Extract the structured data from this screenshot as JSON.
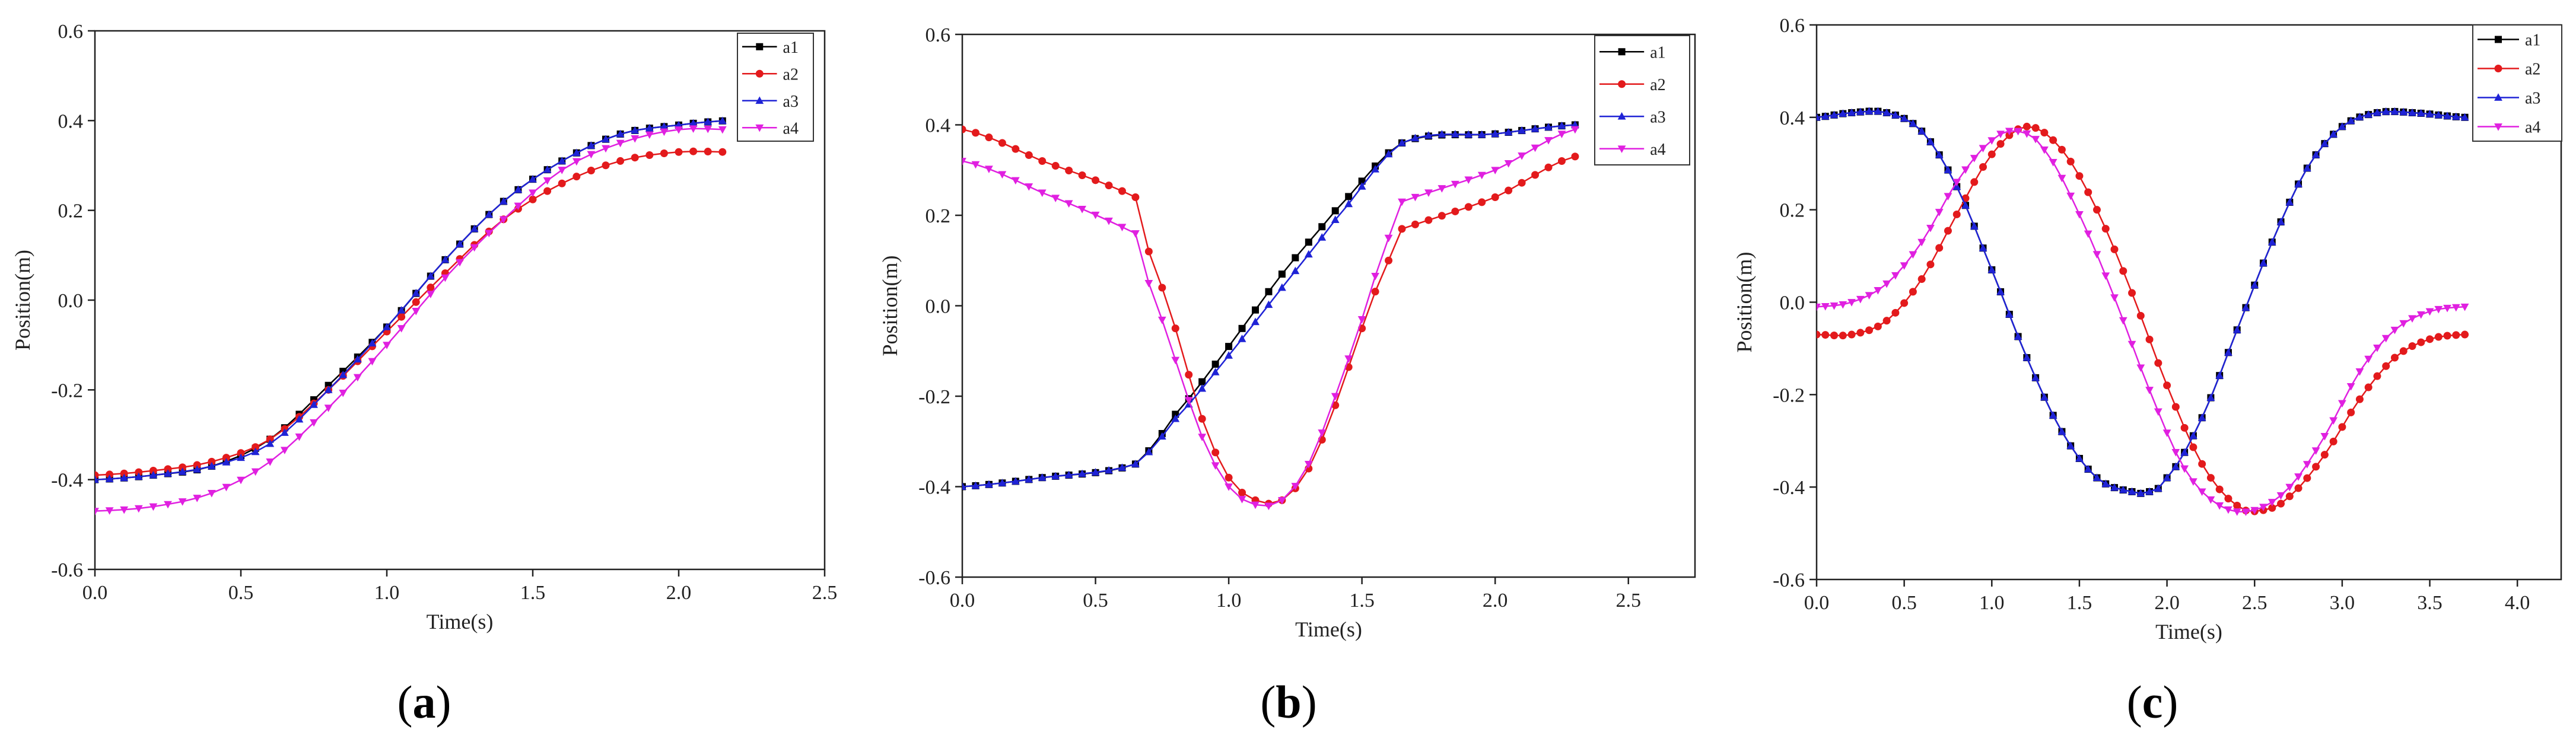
{
  "chart_data": [
    {
      "type": "line",
      "panel_label": "a",
      "xlabel": "Time(s)",
      "ylabel": "Position(m)",
      "xlim": [
        0,
        2.5
      ],
      "ylim": [
        -0.6,
        0.6
      ],
      "xticks": [
        0.0,
        0.5,
        1.0,
        1.5,
        2.0,
        2.5
      ],
      "yticks": [
        -0.6,
        -0.4,
        -0.2,
        0.0,
        0.2,
        0.4,
        0.6
      ],
      "xtick_labels": [
        "0.0",
        "0.5",
        "1.0",
        "1.5",
        "2.0",
        "2.5"
      ],
      "ytick_labels": [
        "-0.6",
        "-0.4",
        "-0.2",
        "0.0",
        "0.2",
        "0.4",
        "0.6"
      ],
      "legend": [
        "a1",
        "a2",
        "a3",
        "a4"
      ],
      "series": [
        {
          "name": "a1",
          "color": "#000000",
          "marker": "square",
          "x": [
            0,
            0.2,
            0.4,
            0.6,
            0.8,
            1.0,
            1.2,
            1.4,
            1.6,
            1.8,
            2.0,
            2.17
          ],
          "y": [
            -0.4,
            -0.39,
            -0.37,
            -0.31,
            -0.19,
            -0.06,
            0.09,
            0.22,
            0.31,
            0.37,
            0.39,
            0.4
          ]
        },
        {
          "name": "a2",
          "color": "#e31a1c",
          "marker": "circle",
          "x": [
            0,
            0.2,
            0.4,
            0.6,
            0.8,
            1.0,
            1.2,
            1.4,
            1.6,
            1.8,
            2.0,
            2.17
          ],
          "y": [
            -0.39,
            -0.38,
            -0.36,
            -0.31,
            -0.2,
            -0.07,
            0.06,
            0.18,
            0.26,
            0.31,
            0.33,
            0.33
          ]
        },
        {
          "name": "a3",
          "color": "#1f23d6",
          "marker": "triangle-up",
          "x": [
            0,
            0.2,
            0.4,
            0.6,
            0.8,
            1.0,
            1.2,
            1.4,
            1.6,
            1.8,
            2.0,
            2.17
          ],
          "y": [
            -0.4,
            -0.39,
            -0.37,
            -0.32,
            -0.2,
            -0.06,
            0.09,
            0.22,
            0.31,
            0.37,
            0.39,
            0.4
          ]
        },
        {
          "name": "a4",
          "color": "#e020e0",
          "marker": "triangle-down",
          "x": [
            0,
            0.2,
            0.4,
            0.6,
            0.8,
            1.0,
            1.2,
            1.4,
            1.6,
            1.8,
            2.0,
            2.17
          ],
          "y": [
            -0.47,
            -0.46,
            -0.43,
            -0.36,
            -0.24,
            -0.1,
            0.05,
            0.18,
            0.29,
            0.35,
            0.38,
            0.38
          ]
        }
      ]
    },
    {
      "type": "line",
      "panel_label": "b",
      "xlabel": "Time(s)",
      "ylabel": "Position(m)",
      "xlim": [
        0,
        2.75
      ],
      "ylim": [
        -0.6,
        0.6
      ],
      "xticks": [
        0.0,
        0.5,
        1.0,
        1.5,
        2.0,
        2.5
      ],
      "yticks": [
        -0.6,
        -0.4,
        -0.2,
        0.0,
        0.2,
        0.4,
        0.6
      ],
      "xtick_labels": [
        "0.0",
        "0.5",
        "1.0",
        "1.5",
        "2.0",
        "2.5"
      ],
      "ytick_labels": [
        "-0.6",
        "-0.4",
        "-0.2",
        "0.0",
        "0.2",
        "0.4",
        "0.6"
      ],
      "legend": [
        "a1",
        "a2",
        "a3",
        "a4"
      ],
      "series": [
        {
          "name": "a1",
          "color": "#000000",
          "marker": "square",
          "x": [
            0,
            0.3,
            0.65,
            0.8,
            1.0,
            1.2,
            1.4,
            1.65,
            2.0,
            2.3
          ],
          "y": [
            -0.4,
            -0.38,
            -0.35,
            -0.24,
            -0.09,
            0.07,
            0.21,
            0.36,
            0.38,
            0.4
          ]
        },
        {
          "name": "a2",
          "color": "#e31a1c",
          "marker": "circle",
          "x": [
            0,
            0.3,
            0.65,
            0.7,
            0.8,
            0.9,
            1.0,
            1.1,
            1.2,
            1.3,
            1.4,
            1.5,
            1.6,
            1.65,
            2.0,
            2.3
          ],
          "y": [
            0.39,
            0.32,
            0.24,
            0.12,
            -0.05,
            -0.25,
            -0.38,
            -0.43,
            -0.43,
            -0.36,
            -0.22,
            -0.05,
            0.1,
            0.17,
            0.24,
            0.33
          ]
        },
        {
          "name": "a3",
          "color": "#1f23d6",
          "marker": "triangle-up",
          "x": [
            0,
            0.3,
            0.65,
            0.8,
            1.0,
            1.2,
            1.4,
            1.65,
            2.0,
            2.3
          ],
          "y": [
            -0.4,
            -0.38,
            -0.35,
            -0.25,
            -0.11,
            0.04,
            0.19,
            0.36,
            0.38,
            0.4
          ]
        },
        {
          "name": "a4",
          "color": "#e020e0",
          "marker": "triangle-down",
          "x": [
            0,
            0.3,
            0.65,
            0.7,
            0.8,
            0.9,
            1.0,
            1.1,
            1.2,
            1.3,
            1.4,
            1.5,
            1.6,
            1.65,
            2.0,
            2.3
          ],
          "y": [
            0.32,
            0.25,
            0.16,
            0.05,
            -0.12,
            -0.29,
            -0.4,
            -0.44,
            -0.43,
            -0.35,
            -0.2,
            -0.03,
            0.15,
            0.23,
            0.3,
            0.39
          ]
        }
      ]
    },
    {
      "type": "line",
      "panel_label": "c",
      "xlabel": "Time(s)",
      "ylabel": "Position(m)",
      "xlim": [
        0,
        4.25
      ],
      "ylim": [
        -0.6,
        0.6
      ],
      "xticks": [
        0.0,
        0.5,
        1.0,
        1.5,
        2.0,
        2.5,
        3.0,
        3.5,
        4.0
      ],
      "yticks": [
        -0.6,
        -0.4,
        -0.2,
        0.0,
        0.2,
        0.4,
        0.6
      ],
      "xtick_labels": [
        "0.0",
        "0.5",
        "1.0",
        "1.5",
        "2.0",
        "2.5",
        "3.0",
        "3.5",
        "4.0"
      ],
      "ytick_labels": [
        "-0.6",
        "-0.4",
        "-0.2",
        "0.0",
        "0.2",
        "0.4",
        "0.6"
      ],
      "legend": [
        "a1",
        "a2",
        "a3",
        "a4"
      ],
      "series": [
        {
          "name": "a1",
          "color": "#000000",
          "marker": "square",
          "x": [
            0,
            0.2,
            0.4,
            0.6,
            0.8,
            1.0,
            1.2,
            1.4,
            1.6,
            1.8,
            1.9,
            2.0,
            2.2,
            2.4,
            2.6,
            2.8,
            3.0,
            3.2,
            3.4,
            3.7
          ],
          "y": [
            0.4,
            0.41,
            0.41,
            0.37,
            0.25,
            0.07,
            -0.12,
            -0.28,
            -0.38,
            -0.41,
            -0.41,
            -0.38,
            -0.25,
            -0.06,
            0.13,
            0.29,
            0.38,
            0.41,
            0.41,
            0.4
          ]
        },
        {
          "name": "a2",
          "color": "#e31a1c",
          "marker": "circle",
          "x": [
            0,
            0.2,
            0.4,
            0.6,
            0.8,
            1.0,
            1.2,
            1.4,
            1.6,
            1.8,
            2.0,
            2.2,
            2.4,
            2.55,
            2.7,
            2.9,
            3.1,
            3.3,
            3.5,
            3.7
          ],
          "y": [
            -0.07,
            -0.07,
            -0.04,
            0.05,
            0.19,
            0.32,
            0.38,
            0.33,
            0.2,
            0.02,
            -0.18,
            -0.35,
            -0.44,
            -0.45,
            -0.42,
            -0.33,
            -0.21,
            -0.12,
            -0.08,
            -0.07
          ]
        },
        {
          "name": "a3",
          "color": "#1f23d6",
          "marker": "triangle-up",
          "x": [
            0,
            0.2,
            0.4,
            0.6,
            0.8,
            1.0,
            1.2,
            1.4,
            1.6,
            1.8,
            1.9,
            2.0,
            2.2,
            2.4,
            2.6,
            2.8,
            3.0,
            3.2,
            3.4,
            3.7
          ],
          "y": [
            0.4,
            0.41,
            0.41,
            0.37,
            0.25,
            0.07,
            -0.12,
            -0.28,
            -0.38,
            -0.41,
            -0.41,
            -0.38,
            -0.25,
            -0.06,
            0.13,
            0.29,
            0.38,
            0.41,
            0.41,
            0.4
          ]
        },
        {
          "name": "a4",
          "color": "#e020e0",
          "marker": "triangle-down",
          "x": [
            0,
            0.2,
            0.4,
            0.6,
            0.8,
            1.0,
            1.15,
            1.3,
            1.5,
            1.7,
            1.9,
            2.1,
            2.3,
            2.5,
            2.7,
            2.9,
            3.1,
            3.3,
            3.5,
            3.7
          ],
          "y": [
            -0.01,
            0.0,
            0.04,
            0.13,
            0.26,
            0.35,
            0.37,
            0.33,
            0.19,
            0.01,
            -0.19,
            -0.36,
            -0.44,
            -0.45,
            -0.4,
            -0.29,
            -0.15,
            -0.06,
            -0.02,
            -0.01
          ]
        }
      ]
    }
  ]
}
